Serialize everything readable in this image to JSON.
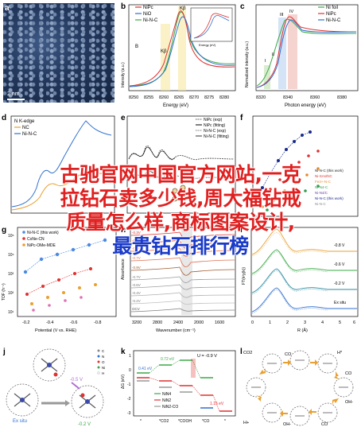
{
  "panels": {
    "a": {
      "label": "a",
      "scale": "2 nm"
    },
    "b": {
      "label": "b",
      "xlabel": "Energy (eV)",
      "ylabel": "Intensity (a.u.)",
      "legend": [
        "NiPc",
        "NiO",
        "Ni-N-C"
      ],
      "ticks": [
        "8250",
        "8255",
        "8260",
        "8265",
        "8270",
        "8275",
        "8280"
      ],
      "inset_xlabel": "Energy (eV)",
      "peaks": [
        "B",
        "Kβ",
        "Kβ",
        "C"
      ]
    },
    "c": {
      "label": "c",
      "xlabel": "Photon energy (eV)",
      "ylabel": "Normalized intensity (a.u.)",
      "legend": [
        "Ni foil",
        "NiPc",
        "Ni-N-C"
      ],
      "ticks": [
        "8320",
        "8340",
        "8360",
        "8380"
      ],
      "peaks": [
        "I",
        "II",
        "III",
        "IV"
      ]
    },
    "d": {
      "label": "d",
      "title": "N K-edge",
      "legend": [
        "NC",
        "Ni-N-C"
      ],
      "xlabel": "Photon energy (eV)"
    },
    "e": {
      "label": "e",
      "legend": [
        "NiPc (exp)",
        "NiPc (fitting)",
        "Ni-N-C (exp)",
        "Ni-N-C (fitting)"
      ]
    },
    "f": {
      "label": "f",
      "xlabel": "Potential (V vs. RHE)",
      "ylabel": "FE (%)",
      "legend": [
        "Ni-N-C (this work)",
        "Ni-SAs/NC",
        "Fe3+-N-C",
        "Ni-N4-C",
        "Ni-N4/C",
        "Ni-N-C (this work)",
        "Ni-N-C"
      ]
    },
    "g": {
      "label": "g",
      "xlabel": "Potential (V vs. RHE)",
      "ylabel": "TOF (h⁻¹)",
      "legend": [
        "Ni-N-C (this work)",
        "CoNe-CN",
        "NiPc-OMe-MDE"
      ],
      "xticks": [
        "-0.2",
        "-0.4",
        "-0.6",
        "-0.8"
      ],
      "yticks": [
        "10¹",
        "10²",
        "10³",
        "10⁴",
        "10⁵"
      ]
    },
    "h": {
      "label": "h",
      "xlabel": "Wavenumber (cm⁻¹)",
      "ylabel": "Absorbance",
      "ticks": [
        "3200",
        "2800",
        "2400",
        "2000",
        "1600"
      ],
      "potentials": [
        "-0.3V",
        "-0.5V",
        "-0.6V",
        "-0.7V",
        "-0.9V",
        "-0.7V",
        "-0.6V",
        "-0.4V",
        "-0.2V",
        "OCV"
      ]
    },
    "i": {
      "label": "i",
      "xlabel": "R (Å)",
      "ylabel": "FT(k²χ(k))",
      "curves": [
        "-0.8 V",
        "-0.6 V",
        "-0.2 V",
        "Ex situ"
      ],
      "ticks": [
        "0",
        "1",
        "2",
        "3",
        "4",
        "5",
        "6"
      ]
    },
    "j": {
      "label": "j",
      "exsitu": "Ex situ",
      "arrow_top": "-0.5 V",
      "arrow_bottom": "-0.2 V",
      "elements": [
        "C",
        "N",
        "O",
        "Ni",
        "H"
      ]
    },
    "k": {
      "label": "k",
      "ylabel": "ΔG (eV)",
      "potential": "U = -0.9 V",
      "values": [
        "0.41 eV",
        "0.72 eV",
        "1.15 eV"
      ],
      "legend": [
        "NiN4",
        "NiN2",
        "NiN2-CO"
      ],
      "steps": [
        "*",
        "*CO2",
        "*COOH",
        "*CO",
        "*"
      ],
      "yticks": [
        "1",
        "0",
        "-1",
        "-2",
        "-3"
      ]
    },
    "l": {
      "label": "l",
      "species": [
        "CO2",
        "CO",
        "H*",
        "OH-",
        "H+",
        "CO",
        "OH-",
        "CO"
      ]
    }
  },
  "overlay": {
    "line1": "古驰官网中国官方网站,一克",
    "line2": "拉钻石卖多少钱,周大福钻戒",
    "line3": "质量怎么样,商标图案设计,",
    "line4": "最贵钻石排行榜"
  },
  "colors": {
    "red": "#e03030",
    "blue": "#2f6fd0",
    "green": "#3aa845",
    "gray": "#888888",
    "overlay_red": "#e02020",
    "overlay_blue": "#1a3ac8"
  }
}
